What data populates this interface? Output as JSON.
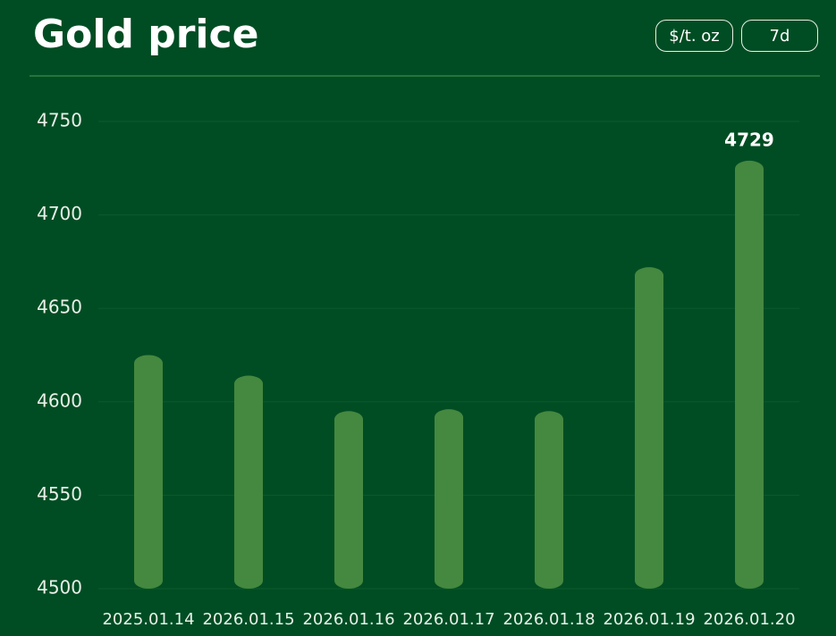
{
  "controls": [
    "$/t. oz",
    "7d"
  ],
  "chart_data": {
    "type": "bar",
    "title": "Gold price",
    "categories": [
      "2025.01.14",
      "2026.01.15",
      "2026.01.16",
      "2026.01.17",
      "2026.01.18",
      "2026.01.19",
      "2026.01.20"
    ],
    "values": [
      4625,
      4614,
      4595,
      4596,
      4595,
      4672,
      4729
    ],
    "color": "#45883f",
    "ylim": [
      4500,
      4750
    ],
    "yticks": [
      4500,
      4550,
      4600,
      4650,
      4700,
      4750
    ],
    "grid": true
  }
}
